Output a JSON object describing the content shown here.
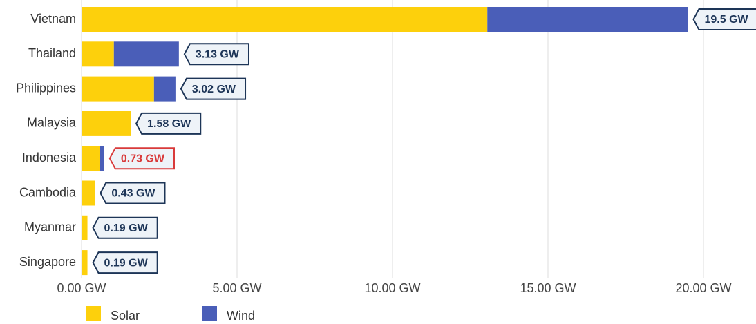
{
  "chart_data": {
    "type": "stacked-bar-horizontal",
    "categories": [
      "Vietnam",
      "Thailand",
      "Philippines",
      "Malaysia",
      "Indonesia",
      "Cambodia",
      "Myanmar",
      "Singapore"
    ],
    "series": [
      {
        "name": "Solar",
        "color": "#fdd00c",
        "values": [
          13.05,
          1.04,
          2.33,
          1.58,
          0.6,
          0.43,
          0.19,
          0.19
        ]
      },
      {
        "name": "Wind",
        "color": "#4a5eb8",
        "values": [
          6.45,
          2.09,
          0.69,
          0,
          0.13,
          0,
          0,
          0
        ]
      }
    ],
    "totals": [
      19.5,
      3.13,
      3.02,
      1.58,
      0.73,
      0.43,
      0.19,
      0.19
    ],
    "total_labels": [
      "19.5 GW",
      "3.13 GW",
      "3.02 GW",
      "1.58 GW",
      "0.73 GW",
      "0.43 GW",
      "0.19 GW",
      "0.19 GW"
    ],
    "highlight": {
      "category": "Indonesia",
      "color": "#d93a3a"
    },
    "label_color": "#1d3557",
    "xlim": [
      0,
      21.6
    ],
    "xticks": [
      {
        "value": 0,
        "label": "0.00 GW"
      },
      {
        "value": 5,
        "label": "5.00 GW"
      },
      {
        "value": 10,
        "label": "10.00 GW"
      },
      {
        "value": 15,
        "label": "15.00 GW"
      },
      {
        "value": 20,
        "label": "20.00 GW"
      }
    ],
    "grid": true
  }
}
